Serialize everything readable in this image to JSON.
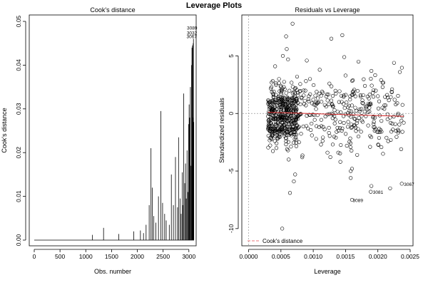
{
  "title": "Leverage Plots",
  "colors": {
    "axis": "#000000",
    "smooth": "#d62728",
    "cooks": "#e8747a",
    "refline": "#999999"
  },
  "chart_data": [
    {
      "type": "bar",
      "subtype": "spike",
      "title": "Cook's distance",
      "xlabel": "Obs. number",
      "ylabel": "Cook's distance",
      "xlim": [
        0,
        3100
      ],
      "ylim": [
        0,
        0.05
      ],
      "xticks": [
        0,
        500,
        1000,
        1500,
        2000,
        2500,
        3000
      ],
      "yticks": [
        0.0,
        0.01,
        0.02,
        0.03,
        0.04,
        0.05
      ],
      "ytick_labels": [
        "0.00",
        "0.01",
        "0.02",
        "0.03",
        "0.04",
        "0.05"
      ],
      "x": [
        1130,
        1345,
        1640,
        1930,
        2060,
        2120,
        2170,
        2230,
        2265,
        2290,
        2320,
        2360,
        2410,
        2455,
        2490,
        2530,
        2560,
        2620,
        2660,
        2700,
        2740,
        2780,
        2800,
        2830,
        2850,
        2870,
        2880,
        2900,
        2920,
        2935,
        2950,
        2965,
        2980,
        2995,
        3005,
        3015,
        3030,
        3040,
        3052,
        3060,
        3070,
        3078,
        3083,
        3087,
        3089,
        3095
      ],
      "values": [
        0.0012,
        0.0028,
        0.0014,
        0.002,
        0.0022,
        0.0016,
        0.0035,
        0.008,
        0.021,
        0.012,
        0.0055,
        0.004,
        0.01,
        0.0295,
        0.0085,
        0.006,
        0.0045,
        0.0035,
        0.015,
        0.008,
        0.019,
        0.0075,
        0.0235,
        0.0095,
        0.006,
        0.0155,
        0.008,
        0.0335,
        0.013,
        0.0175,
        0.0095,
        0.0205,
        0.011,
        0.0265,
        0.031,
        0.028,
        0.035,
        0.017,
        0.04,
        0.044,
        0.0445,
        0.028,
        0.045,
        0.0445,
        0.046,
        0.027
      ],
      "annotations": [
        {
          "label": "3089",
          "x": 3089,
          "y": 0.046
        },
        {
          "label": "3032",
          "x": 3087,
          "y": 0.0445
        },
        {
          "label": "3067",
          "x": 3083,
          "y": 0.044
        }
      ]
    },
    {
      "type": "scatter",
      "title": "Residuals vs Leverage",
      "xlabel": "Leverage",
      "ylabel": "Standardized residuals",
      "xlim": [
        -5e-05,
        0.0025
      ],
      "ylim": [
        -11,
        8
      ],
      "xticks": [
        0.0,
        0.0005,
        0.001,
        0.0015,
        0.002,
        0.0025
      ],
      "xtick_labels": [
        "0.0000",
        "0.0005",
        "0.0010",
        "0.0015",
        "0.0020",
        "0.0025"
      ],
      "yticks": [
        -10,
        -5,
        0,
        5
      ],
      "ytick_labels": [
        "-10",
        "-5",
        "0",
        "5"
      ],
      "legend": {
        "label": "Cook's distance",
        "position": "bottom-left"
      },
      "smooth_line": {
        "x": [
          0.0003,
          0.0024
        ],
        "y": [
          0.1,
          -0.25
        ]
      },
      "points": [
        [
          0.00068,
          7.8
        ],
        [
          0.00058,
          6.7
        ],
        [
          0.00145,
          6.8
        ],
        [
          0.00128,
          6.5
        ],
        [
          0.00059,
          5.6
        ],
        [
          0.00053,
          5.0
        ],
        [
          0.00148,
          4.9
        ],
        [
          0.00061,
          4.7
        ],
        [
          0.0017,
          4.5
        ],
        [
          0.0009,
          4.6
        ],
        [
          0.00041,
          4.1
        ],
        [
          0.0011,
          3.8
        ],
        [
          0.0019,
          3.7
        ],
        [
          0.00225,
          4.4
        ],
        [
          0.00234,
          3.6
        ],
        [
          0.00075,
          3.2
        ],
        [
          0.00095,
          3.0
        ],
        [
          0.0015,
          3.3
        ],
        [
          0.00205,
          2.9
        ],
        [
          0.00125,
          2.6
        ],
        [
          0.0018,
          2.4
        ],
        [
          0.00222,
          2.1
        ],
        [
          0.00085,
          2.0
        ],
        [
          0.00115,
          1.8
        ],
        [
          0.0016,
          1.6
        ],
        [
          0.002,
          1.5
        ],
        [
          0.0007,
          1.4
        ],
        [
          0.001,
          1.2
        ],
        [
          0.0014,
          1.0
        ],
        [
          0.0023,
          0.9
        ],
        [
          0.0008,
          0.8
        ],
        [
          0.0012,
          0.6
        ],
        [
          0.00165,
          0.5
        ],
        [
          0.0021,
          0.4
        ],
        [
          0.0006,
          0.3
        ],
        [
          0.0009,
          -0.2
        ],
        [
          0.0013,
          -0.4
        ],
        [
          0.00175,
          -0.6
        ],
        [
          0.00215,
          -0.5
        ],
        [
          0.0024,
          -0.8
        ],
        [
          0.00072,
          -0.9
        ],
        [
          0.00105,
          -1.1
        ],
        [
          0.00145,
          -1.3
        ],
        [
          0.00195,
          -1.2
        ],
        [
          0.00228,
          -1.5
        ],
        [
          0.00065,
          -1.7
        ],
        [
          0.00098,
          -1.9
        ],
        [
          0.00135,
          -2.1
        ],
        [
          0.0017,
          -2.0
        ],
        [
          0.0022,
          -2.3
        ],
        [
          0.00078,
          -2.5
        ],
        [
          0.00112,
          -2.7
        ],
        [
          0.00152,
          -2.8
        ],
        [
          0.00188,
          -2.9
        ],
        [
          0.00236,
          -3.1
        ],
        [
          0.00061,
          -3.2
        ],
        [
          0.00122,
          -3.4
        ],
        [
          0.00168,
          -3.6
        ],
        [
          0.00208,
          -3.5
        ],
        [
          0.00083,
          -3.8
        ],
        [
          0.00142,
          -4.2
        ],
        [
          0.00062,
          -4.0
        ],
        [
          0.00158,
          -5.0
        ],
        [
          0.00158,
          -5.6
        ],
        [
          0.0016,
          -4.8
        ],
        [
          0.00072,
          -5.3
        ],
        [
          0.0007,
          -5.9
        ],
        [
          0.00064,
          -6.9
        ],
        [
          0.0019,
          -6.3
        ],
        [
          0.00219,
          -6.5
        ],
        [
          0.00237,
          -6.1
        ],
        [
          0.0016,
          -7.5
        ],
        [
          0.00189,
          -6.8
        ],
        [
          0.00052,
          -10.0
        ],
        [
          0.00045,
          -2.2
        ],
        [
          0.0005,
          2.3
        ],
        [
          0.00056,
          -1.0
        ],
        [
          0.00048,
          1.0
        ],
        [
          0.00043,
          -3.0
        ],
        [
          0.00047,
          3.0
        ]
      ],
      "labeled_points": [
        {
          "label": "3089",
          "x": 0.0016,
          "y": -7.5
        },
        {
          "label": "3081",
          "x": 0.00189,
          "y": -6.8
        },
        {
          "label": "3067",
          "x": 0.00237,
          "y": -6.1
        }
      ]
    }
  ]
}
